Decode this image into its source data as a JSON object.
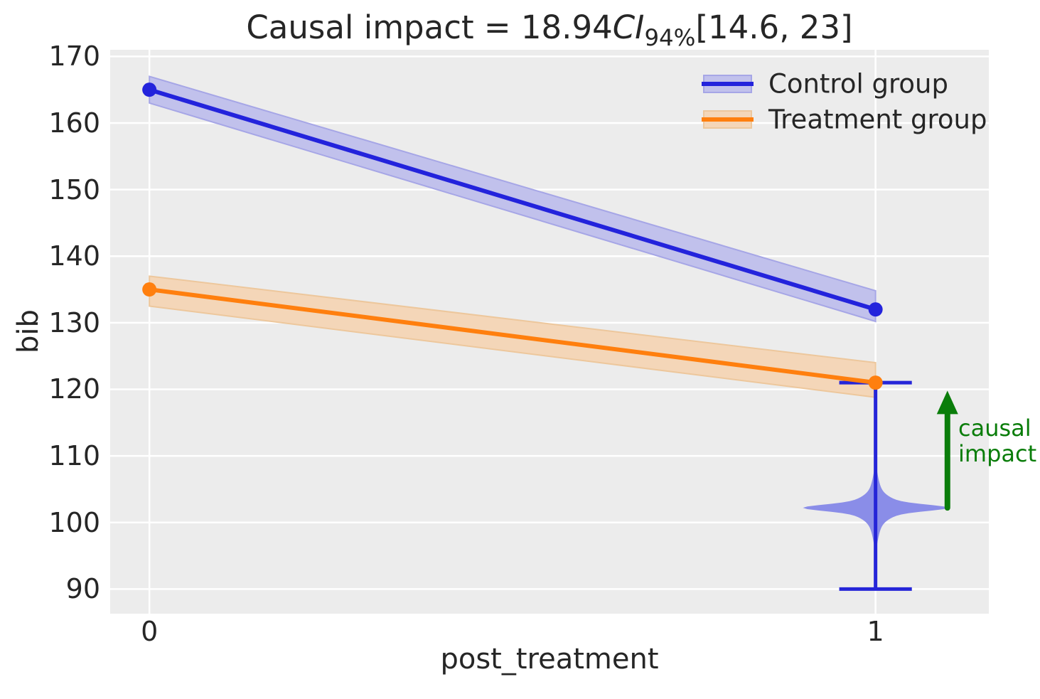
{
  "title": {
    "prefix": "Causal impact = 18.94",
    "ci": "CI",
    "ci_sub": "94%",
    "interval": "[14.6, 23]"
  },
  "axes": {
    "xlabel": "post_treatment",
    "ylabel": "bib"
  },
  "legend": {
    "items": [
      {
        "label": "Control group"
      },
      {
        "label": "Treatment group"
      }
    ]
  },
  "annotation": {
    "line1": "causal",
    "line2": "impact"
  },
  "colors": {
    "figure_background": "#ffffff",
    "plot_background": "#ececec",
    "grid": "#ffffff",
    "text": "#262626",
    "control_line": "#2323dc",
    "control_band": "#c1c1ec",
    "control_band_edge": "#a6a6e6",
    "treatment_line": "#ff7f0e",
    "treatment_band": "#f4d6b8",
    "treatment_band_edge": "#edc79c",
    "violin_fill": "#8a8de8",
    "violin_line": "#2525d8",
    "arrow_green": "#0a7d0a"
  },
  "chart_data": {
    "type": "line",
    "title": "Causal impact = 18.94 CI 94% [14.6, 23]",
    "xlabel": "post_treatment",
    "ylabel": "bib",
    "x": [
      0,
      1
    ],
    "series": [
      {
        "name": "Control group",
        "values": [
          165,
          132
        ],
        "ci_lower": [
          163.0,
          130.2
        ],
        "ci_upper": [
          167.0,
          134.8
        ],
        "color_key": "control"
      },
      {
        "name": "Treatment group",
        "values": [
          135,
          121
        ],
        "ci_lower": [
          132.5,
          118.8
        ],
        "ci_upper": [
          137.0,
          124.0
        ],
        "color_key": "treatment"
      }
    ],
    "violin": {
      "x": 1,
      "center": 102.2,
      "whisker_low": 90,
      "whisker_high": 121,
      "max_halfwidth_units": 0.1,
      "cap_halfwidth_units": 0.05
    },
    "arrow": {
      "x": 1.099,
      "from": 102.2,
      "to": 119.8,
      "label": "causal impact"
    },
    "causal_impact": {
      "estimate": 18.94,
      "ci_level": "94%",
      "ci": [
        14.6,
        23
      ]
    },
    "xticks": [
      0,
      1
    ],
    "yticks": [
      90,
      100,
      110,
      120,
      130,
      140,
      150,
      160,
      170
    ],
    "xlim": [
      -0.054,
      1.156
    ],
    "ylim": [
      86.3,
      171.0
    ],
    "grid": true,
    "legend_position": "upper right"
  }
}
